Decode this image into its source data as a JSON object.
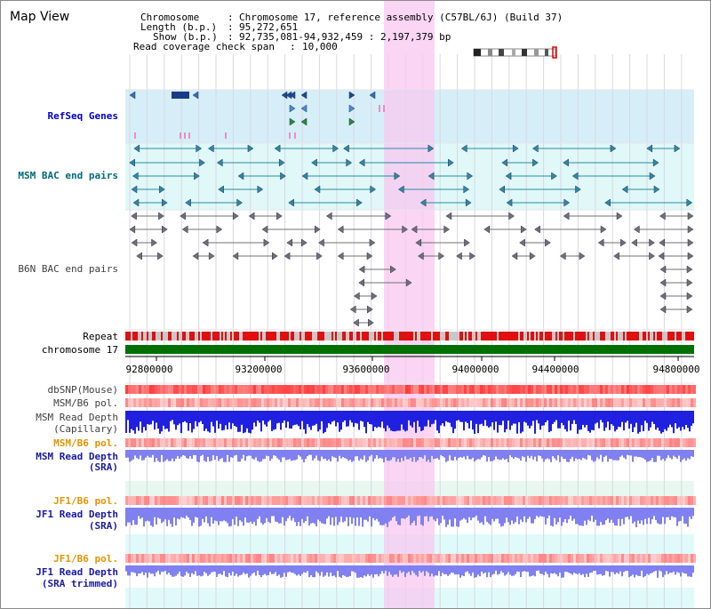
{
  "title": "Map View",
  "info": {
    "chromosome_key": "Chromosome",
    "chromosome_val": "Chromosome 17, reference assembly (C57BL/6J) (Build 37)",
    "length_key": "Length (b.p.)",
    "length_val": "95,272,651",
    "show_key": "Show (b.p.)",
    "show_val": "92,735,081-94,932,459 : 2,197,379 bp",
    "span_key": "Read coverage check span",
    "span_val": "10,000"
  },
  "tracks": {
    "refseq": "RefSeq Genes",
    "msm_bac": "MSM BAC end pairs",
    "b6n_bac": "B6N BAC end pairs",
    "repeat": "Repeat",
    "chromosome": "chromosome 17",
    "dbsnp": "dbSNP(Mouse)",
    "msm_b6_pol_1": "MSM/B6 pol.",
    "msm_depth_cap_1": "MSM Read Depth",
    "msm_depth_cap_2": "(Capillary)",
    "msm_b6_pol_2": "MSM/B6 pol.",
    "msm_depth_sra_1": "MSM Read Depth",
    "msm_depth_sra_2": "(SRA)",
    "jf1_b6_pol_1": "JF1/B6 pol.",
    "jf1_depth_sra_1": "JF1 Read Depth",
    "jf1_depth_sra_2": "(SRA)",
    "jf1_b6_pol_2": "JF1/B6 pol.",
    "jf1_depth_trim_1": "JF1 Read Depth",
    "jf1_depth_trim_2": "(SRA trimmed)"
  },
  "axis_ticks": [
    "92800000",
    "93200000",
    "93600000",
    "94000000",
    "94400000",
    "94800000"
  ],
  "colors": {
    "refseq_bg": "#d6eef8",
    "msm_bac_bg": "#e0f8f8",
    "highlight": "#f8c8f0",
    "repeat_red": "#e01010",
    "chromosome_green": "#007000",
    "depth_capillary": "#2020e0",
    "depth_sra": "#8080f0"
  }
}
